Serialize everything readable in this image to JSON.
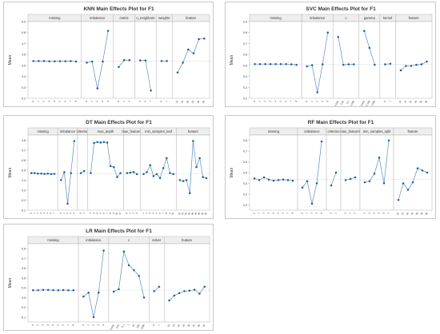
{
  "chart_data": [
    {
      "id": "knn",
      "type": "line",
      "title": "KNN Main Effects Plot for F1",
      "ylabel": "Mean",
      "ylim": [
        0.2,
        0.9
      ],
      "yticks": [
        "0.2",
        "0.3",
        "0.4",
        "0.5",
        "0.6",
        "0.7",
        "0.8",
        "0.9"
      ],
      "grid": false,
      "panels": [
        {
          "name": "missing",
          "x": [
            "0",
            "1",
            "2",
            "3",
            "4",
            "5",
            "6",
            "7",
            "8"
          ],
          "values": [
            0.54,
            0.54,
            0.54,
            0.537,
            0.537,
            0.538,
            0.538,
            0.539,
            0.535
          ]
        },
        {
          "name": "imbalance",
          "x": [
            "0",
            "1",
            "2",
            "3",
            "4"
          ],
          "values": [
            0.525,
            0.535,
            0.29,
            0.535,
            0.815
          ]
        },
        {
          "name": "metric",
          "x": [
            "0",
            "1",
            "2"
          ],
          "values": [
            0.485,
            0.548,
            0.548
          ]
        },
        {
          "name": "n_neighbors",
          "x": [
            "3",
            "5",
            "7"
          ],
          "values": [
            0.545,
            0.545,
            0.27
          ]
        },
        {
          "name": "weights",
          "x": [
            "0",
            "1"
          ],
          "values": [
            0.54,
            0.54
          ]
        },
        {
          "name": "feature",
          "x": [
            "10",
            "15",
            "20",
            "25",
            "30",
            "35"
          ],
          "values": [
            0.435,
            0.525,
            0.645,
            0.61,
            0.74,
            0.745
          ]
        }
      ]
    },
    {
      "id": "svc",
      "type": "line",
      "title": "SVC Main Effects Plot for F1",
      "ylabel": "Mean",
      "ylim": [
        0.2,
        0.9
      ],
      "yticks": [
        "0.2",
        "0.3",
        "0.4",
        "0.5",
        "0.6",
        "0.7",
        "0.8",
        "0.9"
      ],
      "grid": false,
      "panels": [
        {
          "name": "missing",
          "x": [
            "0",
            "1",
            "2",
            "3",
            "4",
            "5",
            "6",
            "7",
            "8"
          ],
          "values": [
            0.512,
            0.512,
            0.512,
            0.512,
            0.512,
            0.512,
            0.512,
            0.51,
            0.505
          ]
        },
        {
          "name": "imbalance",
          "x": [
            "0",
            "1",
            "2",
            "3",
            "4"
          ],
          "values": [
            0.492,
            0.502,
            0.255,
            0.51,
            0.8
          ]
        },
        {
          "name": "c",
          "x": [
            "0.001",
            "0.01",
            "0.1",
            "1.000"
          ],
          "values": [
            0.76,
            0.505,
            0.51,
            0.51
          ]
        },
        {
          "name": "gamma",
          "x": [
            "0.001",
            "0.100",
            "1.000"
          ],
          "values": [
            0.815,
            0.66,
            0.505
          ]
        },
        {
          "name": "kernel",
          "x": [
            "0",
            "1"
          ],
          "values": [
            0.51,
            0.515
          ]
        },
        {
          "name": "feature",
          "x": [
            "10",
            "15",
            "20",
            "25",
            "30",
            "35"
          ],
          "values": [
            0.455,
            0.495,
            0.495,
            0.505,
            0.51,
            0.535
          ]
        }
      ]
    },
    {
      "id": "dt",
      "type": "line",
      "title": "DT Main Effects Plot for F1",
      "ylabel": "Mean",
      "ylim": [
        0.1,
        0.85
      ],
      "yticks": [
        "0.1",
        "0.2",
        "0.3",
        "0.4",
        "0.5",
        "0.6",
        "0.7",
        "0.8"
      ],
      "grid": false,
      "panels": [
        {
          "name": "missing",
          "x": [
            "0",
            "1",
            "2",
            "3",
            "4",
            "5",
            "6",
            "7"
          ],
          "values": [
            0.47,
            0.47,
            0.465,
            0.465,
            0.462,
            0.465,
            0.46,
            0.462
          ]
        },
        {
          "name": "imbalance",
          "x": [
            "0",
            "1",
            "2",
            "3",
            "4"
          ],
          "values": [
            0.4,
            0.48,
            0.165,
            0.47,
            0.79
          ]
        },
        {
          "name": "criterion",
          "x": [
            "0",
            "1"
          ],
          "values": [
            0.47,
            0.49
          ]
        },
        {
          "name": "max_depth",
          "x": [
            "2",
            "3",
            "4",
            "5",
            "6",
            "7",
            "8",
            "9",
            "10",
            "11"
          ],
          "values": [
            0.47,
            0.77,
            0.78,
            0.775,
            0.78,
            0.775,
            0.54,
            0.53,
            0.43,
            0.47
          ]
        },
        {
          "name": "max_features",
          "x": [
            "0",
            "1",
            "2",
            "3"
          ],
          "values": [
            0.47,
            0.475,
            0.48,
            0.46
          ]
        },
        {
          "name": "min_samples_leaf",
          "x": [
            "1",
            "2",
            "3",
            "4",
            "5",
            "6",
            "7",
            "8",
            "9",
            "10"
          ],
          "values": [
            0.46,
            0.48,
            0.55,
            0.44,
            0.46,
            0.42,
            0.52,
            0.62,
            0.47,
            0.46
          ]
        },
        {
          "name": "feature",
          "x": [
            "10",
            "15",
            "20",
            "25",
            "30",
            "35",
            "40",
            "45",
            "50"
          ],
          "values": [
            0.4,
            0.39,
            0.4,
            0.27,
            0.79,
            0.53,
            0.62,
            0.43,
            0.42
          ]
        }
      ]
    },
    {
      "id": "rf",
      "type": "line",
      "title": "RF Main Effects Plot for F1",
      "ylabel": "Mean",
      "ylim": [
        0.15,
        0.85
      ],
      "yticks": [
        "0.2",
        "0.3",
        "0.4",
        "0.5",
        "0.6",
        "0.7",
        "0.8"
      ],
      "grid": false,
      "panels": [
        {
          "name": "missing",
          "x": [
            "0",
            "1",
            "2",
            "3",
            "4",
            "5",
            "6",
            "7",
            "8"
          ],
          "values": [
            0.445,
            0.43,
            0.455,
            0.435,
            0.425,
            0.43,
            0.435,
            0.43,
            0.425
          ]
        },
        {
          "name": "imbalance",
          "x": [
            "0",
            "1",
            "2",
            "3",
            "4"
          ],
          "values": [
            0.36,
            0.42,
            0.21,
            0.4,
            0.79
          ]
        },
        {
          "name": "criterion",
          "x": [
            "0",
            "1"
          ],
          "values": [
            0.38,
            0.5
          ]
        },
        {
          "name": "max_features",
          "x": [
            "0",
            "1",
            "2"
          ],
          "values": [
            0.43,
            0.44,
            0.455
          ]
        },
        {
          "name": "min_samples_split",
          "x": [
            "2",
            "3",
            "4",
            "5",
            "6",
            "7"
          ],
          "values": [
            0.41,
            0.42,
            0.49,
            0.64,
            0.4,
            0.8
          ]
        },
        {
          "name": "feature",
          "x": [
            "10",
            "15",
            "20",
            "25",
            "30",
            "35",
            "40"
          ],
          "values": [
            0.245,
            0.4,
            0.34,
            0.41,
            0.54,
            0.52,
            0.5
          ]
        }
      ]
    },
    {
      "id": "lr",
      "type": "line",
      "title": "LR Main Effects Plot for F1",
      "ylabel": "Mean",
      "ylim": [
        0.05,
        0.85
      ],
      "yticks": [
        "0.1",
        "0.2",
        "0.3",
        "0.4",
        "0.5",
        "0.6",
        "0.7",
        "0.8"
      ],
      "grid": false,
      "panels": [
        {
          "name": "missing",
          "x": [
            "0",
            "1",
            "2",
            "3",
            "4",
            "5",
            "6",
            "7",
            "8"
          ],
          "values": [
            0.375,
            0.375,
            0.378,
            0.378,
            0.376,
            0.375,
            0.377,
            0.374,
            0.374
          ]
        },
        {
          "name": "imbalance",
          "x": [
            "0",
            "1",
            "2",
            "3",
            "4"
          ],
          "values": [
            0.31,
            0.35,
            0.1,
            0.35,
            0.78
          ]
        },
        {
          "name": "c",
          "x": [
            "0.001",
            "0.01",
            "0.1",
            "1",
            "10",
            "100",
            "1000"
          ],
          "values": [
            0.36,
            0.385,
            0.77,
            0.63,
            0.58,
            0.52,
            0.3
          ]
        },
        {
          "name": "solver",
          "x": [
            "0",
            "1"
          ],
          "values": [
            0.365,
            0.41
          ]
        },
        {
          "name": "feature",
          "x": [
            "10",
            "15",
            "20",
            "25",
            "30",
            "35",
            "40",
            "45"
          ],
          "values": [
            0.27,
            0.32,
            0.345,
            0.365,
            0.37,
            0.38,
            0.34,
            0.41
          ]
        }
      ]
    }
  ],
  "colors": {
    "line": "#5b8ec2",
    "marker": "#1f5d99",
    "panel_header": "#eeeeee",
    "border": "#b5b5b5",
    "reference_line": "#bbbbbb",
    "text": "#333333"
  }
}
